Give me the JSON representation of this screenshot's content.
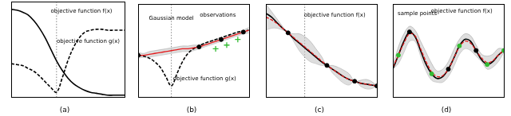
{
  "chart_data": [
    {
      "type": "line",
      "title": "(a)",
      "tick_labels": false,
      "xlim": [
        0,
        1
      ],
      "ylim": [
        0,
        1
      ],
      "vlines": [
        0.4
      ],
      "x": [
        0,
        0.05,
        0.1,
        0.15,
        0.2,
        0.25,
        0.3,
        0.35,
        0.4,
        0.45,
        0.5,
        0.55,
        0.6,
        0.65,
        0.7,
        0.75,
        0.8,
        0.85,
        0.9,
        0.95,
        1
      ],
      "series": [
        {
          "type": "line",
          "color": "#000000",
          "line_style": "solid",
          "values": [
            0.92,
            0.91,
            0.89,
            0.86,
            0.8,
            0.72,
            0.62,
            0.5,
            0.38,
            0.28,
            0.2,
            0.14,
            0.1,
            0.07,
            0.05,
            0.04,
            0.03,
            0.02,
            0.02,
            0.02,
            0.02
          ]
        },
        {
          "type": "line",
          "color": "#000000",
          "line_style": "dashed",
          "values": [
            0.35,
            0.34,
            0.33,
            0.3,
            0.27,
            0.22,
            0.16,
            0.1,
            0.05,
            0.2,
            0.38,
            0.52,
            0.62,
            0.68,
            0.7,
            0.71,
            0.71,
            0.7,
            0.7,
            0.7,
            0.7
          ]
        }
      ],
      "annotations": [
        {
          "text": "objective function f(x)",
          "x": 0.62,
          "y": 0.9
        },
        {
          "text": "objective function g(x)",
          "x": 0.68,
          "y": 0.58
        }
      ]
    },
    {
      "type": "line",
      "title": "(b)",
      "tick_labels": false,
      "xlim": [
        0,
        1
      ],
      "ylim": [
        0,
        1
      ],
      "vlines": [
        0.3
      ],
      "x": [
        0,
        0.05,
        0.1,
        0.15,
        0.2,
        0.25,
        0.3,
        0.35,
        0.4,
        0.45,
        0.5,
        0.55,
        0.6,
        0.65,
        0.7,
        0.75,
        0.8,
        0.85,
        0.9,
        0.95,
        1
      ],
      "series": [
        {
          "type": "line",
          "color": "#e41a1c",
          "line_style": "solid",
          "values": [
            0.45,
            0.45,
            0.46,
            0.47,
            0.48,
            0.49,
            0.5,
            0.51,
            0.52,
            0.52,
            0.53,
            0.54,
            0.56,
            0.58,
            0.6,
            0.62,
            0.64,
            0.66,
            0.68,
            0.7,
            0.72
          ],
          "band": {
            "lower": [
              0.42,
              0.43,
              0.43,
              0.44,
              0.45,
              0.46,
              0.47,
              0.48,
              0.49,
              0.49,
              0.5,
              0.52,
              0.54,
              0.56,
              0.58,
              0.6,
              0.62,
              0.64,
              0.66,
              0.68,
              0.69
            ],
            "upper": [
              0.48,
              0.47,
              0.49,
              0.5,
              0.51,
              0.52,
              0.53,
              0.54,
              0.55,
              0.55,
              0.56,
              0.56,
              0.58,
              0.6,
              0.62,
              0.64,
              0.66,
              0.68,
              0.7,
              0.72,
              0.75
            ]
          }
        },
        {
          "type": "line",
          "color": "#000000",
          "line_style": "dashed",
          "values": [
            0.45,
            0.44,
            0.42,
            0.38,
            0.32,
            0.22,
            0.12,
            0.25,
            0.38,
            0.47,
            0.52,
            0.55,
            0.58,
            0.6,
            0.62,
            0.64,
            0.66,
            0.68,
            0.7,
            0.71,
            0.72
          ]
        },
        {
          "type": "scatter",
          "color": "#000000",
          "marker": "circle",
          "x": [
            0.0,
            0.55,
            0.75,
            0.95
          ],
          "values": [
            0.45,
            0.54,
            0.62,
            0.7
          ]
        },
        {
          "type": "scatter",
          "color": "#33bb33",
          "marker": "cross",
          "x": [
            0.7,
            0.8,
            0.9
          ],
          "values": [
            0.52,
            0.56,
            0.62
          ]
        }
      ],
      "annotations": [
        {
          "text": "Gaussian model",
          "x": 0.3,
          "y": 0.85
        },
        {
          "text": "observations",
          "x": 0.72,
          "y": 0.88
        },
        {
          "text": "objective function g(x)",
          "x": 0.6,
          "y": 0.2
        }
      ]
    },
    {
      "type": "line",
      "title": "(c)",
      "tick_labels": false,
      "xlim": [
        0,
        1
      ],
      "ylim": [
        0,
        1
      ],
      "vlines": [
        0.35
      ],
      "x": [
        0,
        0.05,
        0.1,
        0.15,
        0.2,
        0.25,
        0.3,
        0.35,
        0.4,
        0.45,
        0.5,
        0.55,
        0.6,
        0.65,
        0.7,
        0.75,
        0.8,
        0.85,
        0.9,
        0.95,
        1
      ],
      "series": [
        {
          "type": "line",
          "color": "#e41a1c",
          "line_style": "dashed",
          "values": [
            0.86,
            0.83,
            0.79,
            0.74,
            0.69,
            0.64,
            0.59,
            0.54,
            0.49,
            0.44,
            0.39,
            0.34,
            0.3,
            0.26,
            0.22,
            0.19,
            0.17,
            0.15,
            0.14,
            0.13,
            0.12
          ],
          "band": {
            "lower": [
              0.72,
              0.74,
              0.74,
              0.72,
              0.69,
              0.6,
              0.5,
              0.43,
              0.38,
              0.36,
              0.34,
              0.34,
              0.26,
              0.2,
              0.15,
              0.13,
              0.17,
              0.12,
              0.09,
              0.09,
              0.12
            ],
            "upper": [
              1.0,
              0.92,
              0.84,
              0.76,
              0.69,
              0.68,
              0.68,
              0.65,
              0.6,
              0.52,
              0.44,
              0.34,
              0.34,
              0.32,
              0.29,
              0.25,
              0.17,
              0.18,
              0.19,
              0.17,
              0.12
            ]
          }
        },
        {
          "type": "line",
          "color": "#000000",
          "line_style": "solid",
          "values": [
            0.9,
            0.86,
            0.8,
            0.74,
            0.69,
            0.63,
            0.58,
            0.53,
            0.48,
            0.43,
            0.38,
            0.34,
            0.3,
            0.26,
            0.22,
            0.19,
            0.17,
            0.15,
            0.14,
            0.13,
            0.12
          ]
        },
        {
          "type": "scatter",
          "color": "#000000",
          "marker": "circle",
          "x": [
            0.2,
            0.55,
            0.8,
            1.0
          ],
          "values": [
            0.69,
            0.34,
            0.17,
            0.12
          ]
        }
      ],
      "annotations": [
        {
          "text": "objective function f(x)",
          "x": 0.62,
          "y": 0.88
        }
      ]
    },
    {
      "type": "line",
      "title": "(d)",
      "tick_labels": false,
      "xlim": [
        0,
        1
      ],
      "ylim": [
        0,
        1
      ],
      "vlines": [],
      "x": [
        0,
        0.05,
        0.1,
        0.15,
        0.2,
        0.25,
        0.3,
        0.35,
        0.4,
        0.45,
        0.5,
        0.55,
        0.6,
        0.65,
        0.7,
        0.75,
        0.8,
        0.85,
        0.9,
        0.95,
        1
      ],
      "series": [
        {
          "type": "line",
          "color": "#e41a1c",
          "line_style": "dashed",
          "values": [
            0.32,
            0.45,
            0.58,
            0.68,
            0.66,
            0.52,
            0.38,
            0.27,
            0.22,
            0.23,
            0.3,
            0.42,
            0.54,
            0.6,
            0.58,
            0.5,
            0.42,
            0.37,
            0.39,
            0.45,
            0.5
          ],
          "band": {
            "lower": [
              0.3,
              0.36,
              0.48,
              0.6,
              0.6,
              0.44,
              0.28,
              0.18,
              0.16,
              0.16,
              0.22,
              0.33,
              0.46,
              0.52,
              0.5,
              0.44,
              0.38,
              0.3,
              0.32,
              0.38,
              0.48
            ],
            "upper": [
              0.34,
              0.54,
              0.68,
              0.76,
              0.72,
              0.6,
              0.48,
              0.36,
              0.28,
              0.3,
              0.38,
              0.51,
              0.62,
              0.68,
              0.66,
              0.56,
              0.46,
              0.44,
              0.46,
              0.52,
              0.52
            ]
          }
        },
        {
          "type": "line",
          "color": "#000000",
          "line_style": "solid",
          "values": [
            0.3,
            0.45,
            0.6,
            0.7,
            0.65,
            0.5,
            0.35,
            0.25,
            0.2,
            0.22,
            0.3,
            0.42,
            0.55,
            0.62,
            0.6,
            0.5,
            0.4,
            0.35,
            0.38,
            0.45,
            0.5
          ]
        },
        {
          "type": "scatter",
          "color": "#000000",
          "marker": "circle",
          "x": [
            0.15,
            0.5,
            0.75
          ],
          "values": [
            0.7,
            0.3,
            0.5
          ]
        },
        {
          "type": "scatter",
          "color": "#33bb33",
          "marker": "circle",
          "x": [
            0.05,
            0.35,
            0.6,
            0.85,
            1.0
          ],
          "values": [
            0.45,
            0.25,
            0.55,
            0.35,
            0.5
          ]
        }
      ],
      "annotations": [
        {
          "text": "sample points",
          "x": 0.22,
          "y": 0.9
        },
        {
          "text": "objective function f(x)",
          "x": 0.62,
          "y": 0.92
        }
      ]
    }
  ]
}
